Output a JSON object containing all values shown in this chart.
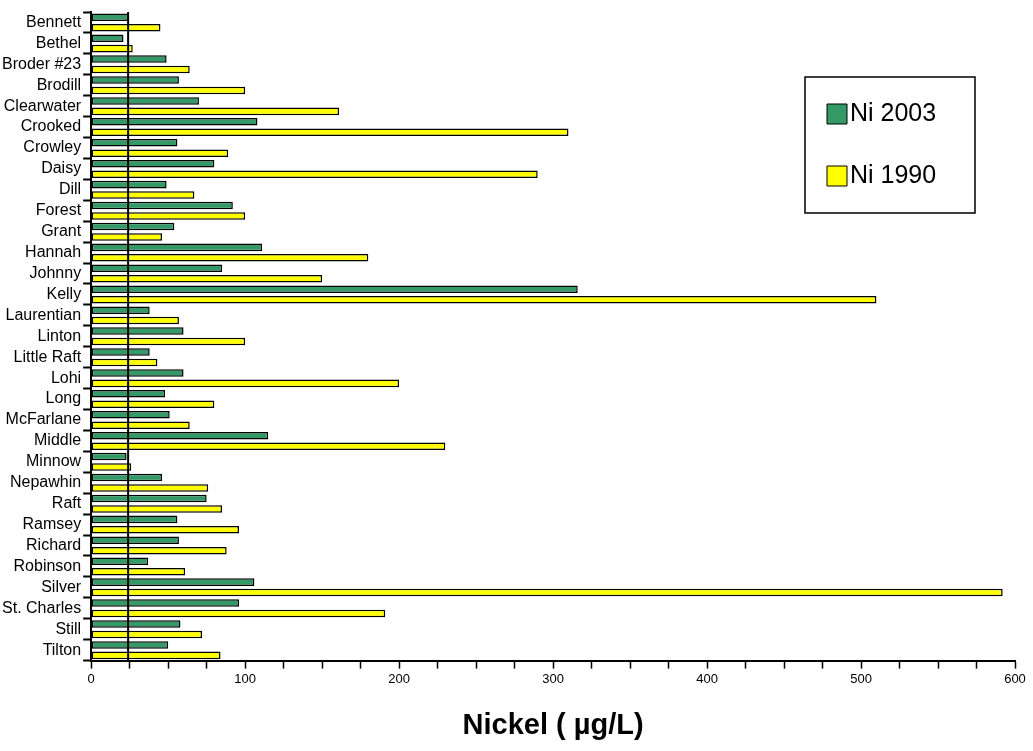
{
  "chart_data": {
    "type": "bar",
    "orientation": "horizontal",
    "xlabel": "Nickel ( µg/L)",
    "categories": [
      "Bennett",
      "Bethel",
      "Broder #23",
      "Brodill",
      "Clearwater",
      "Crooked",
      "Crowley",
      "Daisy",
      "Dill",
      "Forest",
      "Grant",
      "Hannah",
      "Johnny",
      "Kelly",
      "Laurentian",
      "Linton",
      "Little Raft",
      "Lohi",
      "Long",
      "McFarlane",
      "Middle",
      "Minnow",
      "Nepawhin",
      "Raft",
      "Ramsey",
      "Richard",
      "Robinson",
      "Silver",
      "St. Charles",
      "Still",
      "Tilton"
    ],
    "series": [
      {
        "name": "Ni 2003",
        "color": "#339966",
        "values": [
          24,
          21,
          49,
          57,
          70,
          108,
          56,
          80,
          49,
          92,
          54,
          111,
          85,
          316,
          38,
          60,
          38,
          60,
          48,
          51,
          115,
          23,
          46,
          75,
          56,
          57,
          37,
          106,
          96,
          58,
          50
        ]
      },
      {
        "name": "Ni 1990",
        "color": "#ffff00",
        "values": [
          45,
          27,
          64,
          100,
          161,
          310,
          89,
          290,
          67,
          100,
          46,
          180,
          150,
          510,
          57,
          100,
          43,
          200,
          80,
          64,
          230,
          26,
          76,
          85,
          96,
          88,
          61,
          592,
          191,
          72,
          84
        ]
      }
    ],
    "xlim": [
      0,
      600
    ],
    "xticks": [
      0,
      {
        "value": 25,
        "label": null
      },
      {
        "value": 50,
        "label": null
      },
      {
        "value": 75,
        "label": null
      },
      100,
      {
        "value": 125,
        "label": null
      },
      {
        "value": 150,
        "label": null
      },
      {
        "value": 175,
        "label": null
      },
      200,
      {
        "value": 225,
        "label": null
      },
      {
        "value": 250,
        "label": null
      },
      {
        "value": 275,
        "label": null
      },
      300,
      {
        "value": 325,
        "label": null
      },
      {
        "value": 350,
        "label": null
      },
      {
        "value": 375,
        "label": null
      },
      400,
      {
        "value": 425,
        "label": null
      },
      {
        "value": 450,
        "label": null
      },
      {
        "value": 475,
        "label": null
      },
      500,
      {
        "value": 525,
        "label": null
      },
      {
        "value": 550,
        "label": null
      },
      {
        "value": 575,
        "label": null
      },
      600
    ],
    "ref_lines": [
      {
        "axis": "x",
        "value": 24,
        "color": "#000000"
      }
    ],
    "grid": false,
    "legend": "top right"
  }
}
